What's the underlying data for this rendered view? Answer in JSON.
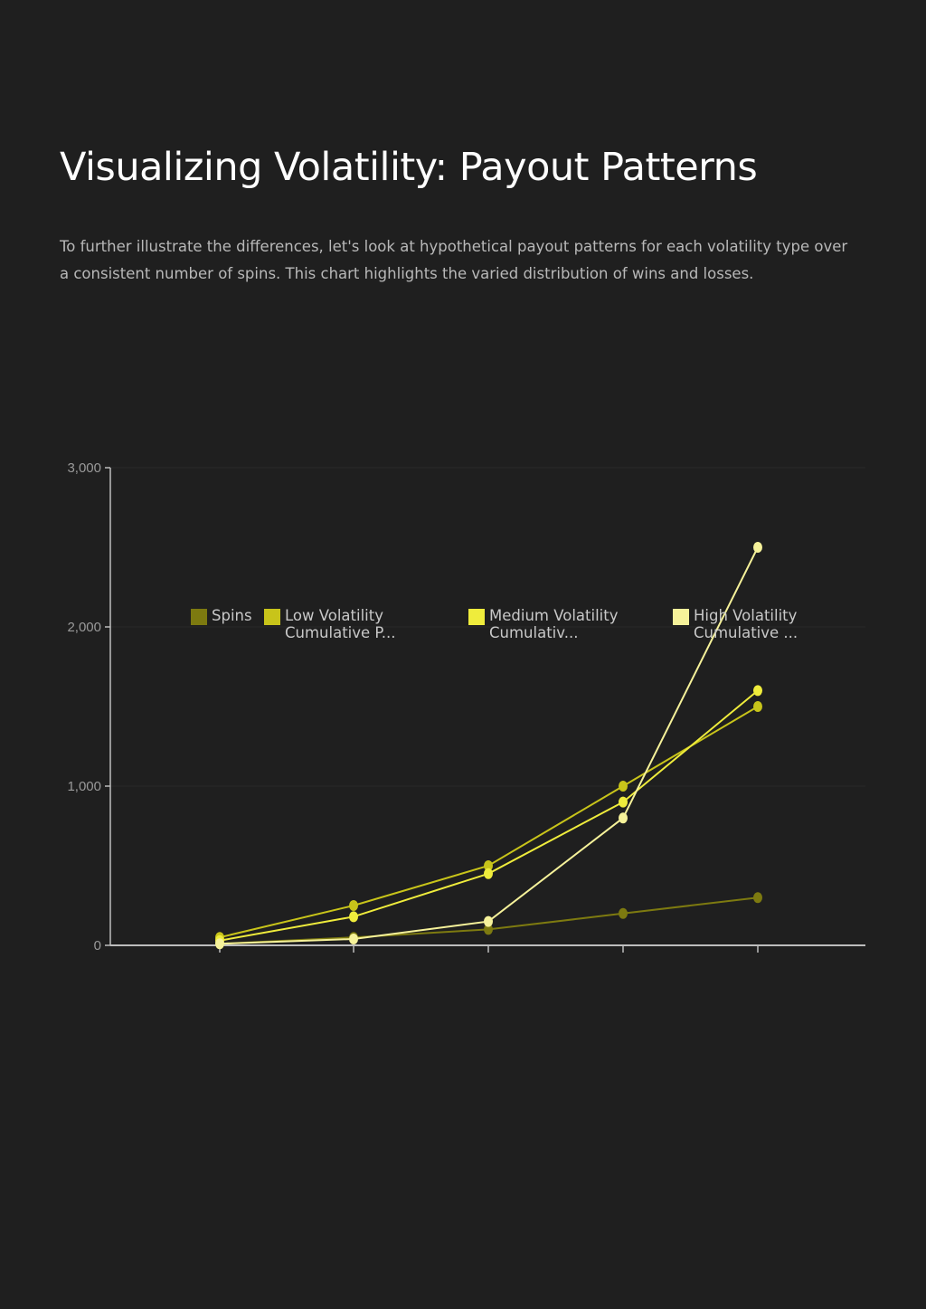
{
  "page": {
    "title": "Visualizing Volatility: Payout Patterns",
    "intro": "To further illustrate the differences, let's look at hypothetical payout patterns for each volatility type over a consistent number of spins. This chart highlights the varied distribution of wins and losses."
  },
  "chart_data": {
    "type": "line",
    "title": "",
    "xlabel": "",
    "ylabel": "",
    "categories": [
      "",
      "",
      "",
      "",
      ""
    ],
    "ylim": [
      0,
      3000
    ],
    "yticks": [
      0,
      1000,
      2000,
      3000
    ],
    "ytick_labels": [
      "0",
      "1,000",
      "2,000",
      "3,000"
    ],
    "grid": "horizontal",
    "legend_position": "inside-top",
    "series": [
      {
        "name": "Spins",
        "legend_lines": [
          "Spins"
        ],
        "color": "#7d7a10",
        "values": [
          10,
          50,
          100,
          200,
          300
        ]
      },
      {
        "name": "Low Volatility Cumulative P...",
        "legend_lines": [
          "Low Volatility",
          "Cumulative P..."
        ],
        "color": "#c8c41a",
        "values": [
          50,
          250,
          500,
          1000,
          1500
        ]
      },
      {
        "name": "Medium Volatility Cumulativ...",
        "legend_lines": [
          "Medium Volatility",
          "Cumulativ..."
        ],
        "color": "#efec3c",
        "values": [
          30,
          180,
          450,
          900,
          1600
        ]
      },
      {
        "name": "High Volatility Cumulative ...",
        "legend_lines": [
          "High Volatility",
          "Cumulative ..."
        ],
        "color": "#f6f29a",
        "values": [
          10,
          40,
          150,
          800,
          2500
        ]
      }
    ]
  }
}
